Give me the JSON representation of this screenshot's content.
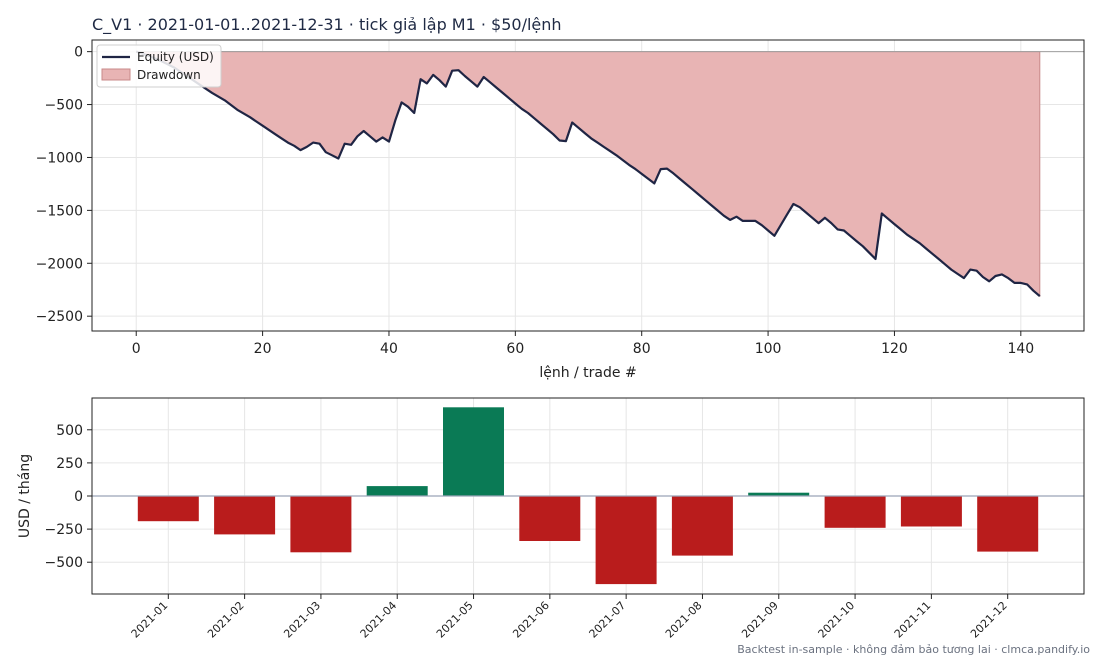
{
  "title": "C_V1 · 2021-01-01..2021-12-31 · tick giả lập M1 · $50/lệnh",
  "footer": "Backtest in-sample · không đảm bảo tương lai · clmca.pandify.io",
  "colors": {
    "equity": "#1f2544",
    "drawdown_fill": "#e8b4b4",
    "drawdown_edge": "#c98a8a",
    "positive": "#0a7a55",
    "negative": "#b91c1c",
    "zero_line": "#9aa5b8",
    "grid": "#e6e6e6",
    "axes": "#222222"
  },
  "chart_data": [
    {
      "type": "line",
      "xlabel": "lệnh / trade #",
      "ylabel": "",
      "xlim": [
        -7,
        150
      ],
      "ylim": [
        -2640,
        110
      ],
      "xticks": [
        0,
        20,
        40,
        60,
        80,
        100,
        120,
        140
      ],
      "yticks": [
        0,
        -500,
        -1000,
        -1500,
        -2000,
        -2500
      ],
      "grid": true,
      "legend": {
        "position": "top-left",
        "entries": [
          {
            "name": "Equity (USD)",
            "kind": "line"
          },
          {
            "name": "Drawdown",
            "kind": "patch"
          }
        ]
      },
      "series": [
        {
          "name": "Equity (USD)",
          "points": [
            [
              0,
              0
            ],
            [
              2,
              -40
            ],
            [
              4,
              -90
            ],
            [
              6,
              -150
            ],
            [
              8,
              -230
            ],
            [
              10,
              -310
            ],
            [
              12,
              -390
            ],
            [
              14,
              -460
            ],
            [
              16,
              -550
            ],
            [
              18,
              -620
            ],
            [
              19,
              -660
            ],
            [
              20,
              -700
            ],
            [
              21,
              -740
            ],
            [
              22,
              -780
            ],
            [
              23,
              -820
            ],
            [
              24,
              -860
            ],
            [
              25,
              -890
            ],
            [
              26,
              -930
            ],
            [
              27,
              -900
            ],
            [
              28,
              -860
            ],
            [
              29,
              -870
            ],
            [
              30,
              -950
            ],
            [
              31,
              -980
            ],
            [
              32,
              -1010
            ],
            [
              33,
              -870
            ],
            [
              34,
              -880
            ],
            [
              35,
              -800
            ],
            [
              36,
              -750
            ],
            [
              37,
              -800
            ],
            [
              38,
              -850
            ],
            [
              39,
              -810
            ],
            [
              40,
              -850
            ],
            [
              41,
              -650
            ],
            [
              42,
              -480
            ],
            [
              43,
              -520
            ],
            [
              44,
              -580
            ],
            [
              45,
              -260
            ],
            [
              46,
              -300
            ],
            [
              47,
              -220
            ],
            [
              48,
              -270
            ],
            [
              49,
              -330
            ],
            [
              50,
              -180
            ],
            [
              51,
              -175
            ],
            [
              52,
              -230
            ],
            [
              53,
              -280
            ],
            [
              54,
              -330
            ],
            [
              55,
              -240
            ],
            [
              56,
              -290
            ],
            [
              57,
              -340
            ],
            [
              58,
              -390
            ],
            [
              59,
              -440
            ],
            [
              60,
              -490
            ],
            [
              61,
              -540
            ],
            [
              62,
              -580
            ],
            [
              63,
              -630
            ],
            [
              64,
              -680
            ],
            [
              65,
              -730
            ],
            [
              66,
              -780
            ],
            [
              67,
              -840
            ],
            [
              68,
              -845
            ],
            [
              69,
              -670
            ],
            [
              70,
              -720
            ],
            [
              71,
              -770
            ],
            [
              72,
              -820
            ],
            [
              73,
              -860
            ],
            [
              74,
              -900
            ],
            [
              75,
              -940
            ],
            [
              76,
              -980
            ],
            [
              77,
              -1025
            ],
            [
              78,
              -1070
            ],
            [
              79,
              -1110
            ],
            [
              80,
              -1155
            ],
            [
              81,
              -1200
            ],
            [
              82,
              -1245
            ],
            [
              83,
              -1110
            ],
            [
              84,
              -1105
            ],
            [
              85,
              -1150
            ],
            [
              86,
              -1200
            ],
            [
              87,
              -1250
            ],
            [
              88,
              -1300
            ],
            [
              89,
              -1350
            ],
            [
              90,
              -1400
            ],
            [
              91,
              -1450
            ],
            [
              92,
              -1500
            ],
            [
              93,
              -1550
            ],
            [
              94,
              -1590
            ],
            [
              95,
              -1560
            ],
            [
              96,
              -1600
            ],
            [
              97,
              -1600
            ],
            [
              98,
              -1600
            ],
            [
              99,
              -1640
            ],
            [
              100,
              -1690
            ],
            [
              101,
              -1740
            ],
            [
              102,
              -1640
            ],
            [
              103,
              -1540
            ],
            [
              104,
              -1440
            ],
            [
              105,
              -1470
            ],
            [
              106,
              -1520
            ],
            [
              107,
              -1570
            ],
            [
              108,
              -1620
            ],
            [
              109,
              -1570
            ],
            [
              110,
              -1620
            ],
            [
              111,
              -1680
            ],
            [
              112,
              -1690
            ],
            [
              113,
              -1740
            ],
            [
              114,
              -1790
            ],
            [
              115,
              -1840
            ],
            [
              116,
              -1900
            ],
            [
              117,
              -1960
            ],
            [
              118,
              -1530
            ],
            [
              119,
              -1580
            ],
            [
              120,
              -1630
            ],
            [
              121,
              -1680
            ],
            [
              122,
              -1730
            ],
            [
              123,
              -1770
            ],
            [
              124,
              -1810
            ],
            [
              125,
              -1860
            ],
            [
              126,
              -1910
            ],
            [
              127,
              -1960
            ],
            [
              128,
              -2010
            ],
            [
              129,
              -2060
            ],
            [
              130,
              -2100
            ],
            [
              131,
              -2140
            ],
            [
              132,
              -2060
            ],
            [
              133,
              -2070
            ],
            [
              134,
              -2130
            ],
            [
              135,
              -2170
            ],
            [
              136,
              -2120
            ],
            [
              137,
              -2105
            ],
            [
              138,
              -2140
            ],
            [
              139,
              -2185
            ],
            [
              140,
              -2185
            ],
            [
              141,
              -2200
            ],
            [
              142,
              -2260
            ],
            [
              143,
              -2310
            ]
          ]
        },
        {
          "name": "Drawdown",
          "note": "area between running peak (0) and equity"
        }
      ]
    },
    {
      "type": "bar",
      "xlabel": "",
      "ylabel": "USD / tháng",
      "ylim": [
        -740,
        740
      ],
      "yticks": [
        500,
        250,
        0,
        -250,
        -500
      ],
      "grid": true,
      "categories": [
        "2021-01",
        "2021-02",
        "2021-03",
        "2021-04",
        "2021-05",
        "2021-06",
        "2021-07",
        "2021-08",
        "2021-09",
        "2021-10",
        "2021-11",
        "2021-12"
      ],
      "values": [
        -190,
        -290,
        -425,
        75,
        670,
        -340,
        -665,
        -450,
        25,
        -240,
        -230,
        -420
      ]
    }
  ]
}
